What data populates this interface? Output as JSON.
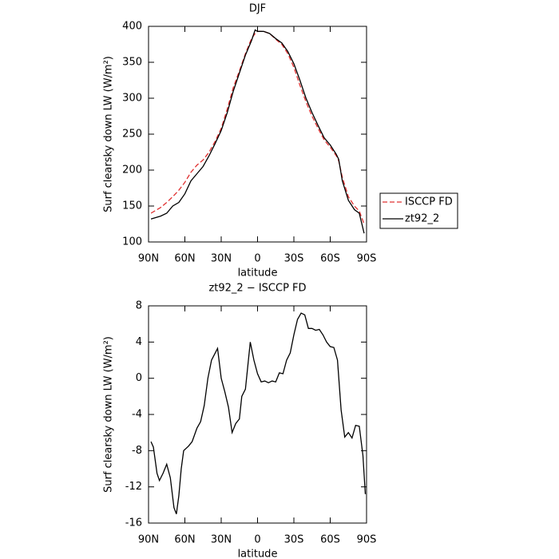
{
  "chart_data": [
    {
      "type": "line",
      "title": "DJF",
      "xlabel": "latitude",
      "ylabel": "Surf clearsky down LW (W/m²)",
      "x": [
        88,
        80,
        75,
        70,
        65,
        60,
        55,
        50,
        45,
        40,
        35,
        30,
        25,
        20,
        15,
        10,
        5,
        2,
        0,
        -5,
        -10,
        -15,
        -20,
        -25,
        -30,
        -35,
        -40,
        -45,
        -50,
        -55,
        -60,
        -65,
        -67,
        -70,
        -75,
        -80,
        -84,
        -88
      ],
      "series": [
        {
          "name": "ISCCP FD",
          "color": "#e03030",
          "linestyle": "dashed",
          "values": [
            140,
            148,
            155,
            163,
            172,
            183,
            197,
            207,
            214,
            225,
            240,
            258,
            285,
            315,
            338,
            362,
            383,
            390,
            393,
            393,
            390,
            382,
            375,
            362,
            343,
            318,
            295,
            275,
            258,
            242,
            232,
            220,
            213,
            190,
            163,
            150,
            143,
            125
          ]
        },
        {
          "name": "zt92_2",
          "color": "#000000",
          "linestyle": "solid",
          "values": [
            132,
            136,
            140,
            150,
            155,
            167,
            185,
            195,
            205,
            220,
            237,
            255,
            280,
            310,
            335,
            360,
            380,
            395,
            393,
            393,
            390,
            383,
            377,
            365,
            348,
            325,
            300,
            280,
            262,
            245,
            235,
            222,
            215,
            185,
            158,
            145,
            140,
            112
          ]
        }
      ],
      "xlim": [
        90,
        -90
      ],
      "xticks": [
        {
          "value": 90,
          "label": "90N"
        },
        {
          "value": 60,
          "label": "60N"
        },
        {
          "value": 30,
          "label": "30N"
        },
        0,
        {
          "value": -30,
          "label": "30S"
        },
        {
          "value": -60,
          "label": "60S"
        },
        {
          "value": -90,
          "label": "90S"
        }
      ],
      "ylim": [
        100,
        400
      ],
      "yticks": [
        100,
        150,
        200,
        250,
        300,
        350,
        400
      ],
      "legend": "right"
    },
    {
      "type": "line",
      "title": "zt92_2 − ISCCP FD",
      "xlabel": "latitude",
      "ylabel": "Surf clearsky down LW (W/m²)",
      "x": [
        88,
        86,
        83,
        81,
        78,
        75,
        72,
        69,
        67,
        65,
        63,
        61,
        57,
        54,
        50,
        47,
        44,
        41,
        38,
        33,
        30,
        27,
        24,
        21,
        18,
        15,
        13,
        10,
        6,
        3,
        0,
        -3,
        -6,
        -9,
        -12,
        -15,
        -18,
        -21,
        -24,
        -27,
        -30,
        -33,
        -36,
        -39,
        -42,
        -45,
        -48,
        -51,
        -54,
        -57,
        -60,
        -63,
        -66,
        -69,
        -72,
        -75,
        -78,
        -81,
        -84,
        -87,
        -89
      ],
      "series": [
        {
          "color": "#000000",
          "linestyle": "solid",
          "values": [
            -7,
            -7.6,
            -10.5,
            -11.3,
            -10.5,
            -9.5,
            -11,
            -14.3,
            -15,
            -13,
            -10,
            -8,
            -7.5,
            -7,
            -5.5,
            -4.8,
            -3,
            0,
            2,
            3.3,
            0,
            -1.5,
            -3.2,
            -6,
            -5,
            -4.5,
            -2,
            -1.2,
            4,
            2,
            0.5,
            -0.4,
            -0.3,
            -0.5,
            -0.3,
            -0.4,
            0.6,
            0.5,
            2,
            2.8,
            4.8,
            6.5,
            7.2,
            7,
            5.5,
            5.5,
            5.3,
            5.4,
            4.8,
            4,
            3.5,
            3.4,
            2,
            -3.5,
            -6.5,
            -6,
            -6.6,
            -5.2,
            -5.3,
            -8.5,
            -12.8
          ]
        }
      ],
      "xlim": [
        90,
        -90
      ],
      "xticks": [
        {
          "value": 90,
          "label": "90N"
        },
        {
          "value": 60,
          "label": "60N"
        },
        {
          "value": 30,
          "label": "30N"
        },
        0,
        {
          "value": -30,
          "label": "30S"
        },
        {
          "value": -60,
          "label": "60S"
        },
        {
          "value": -90,
          "label": "90S"
        }
      ],
      "ylim": [
        -16,
        8
      ],
      "yticks": [
        -16,
        -12,
        -8,
        -4,
        0,
        4,
        8
      ]
    }
  ]
}
